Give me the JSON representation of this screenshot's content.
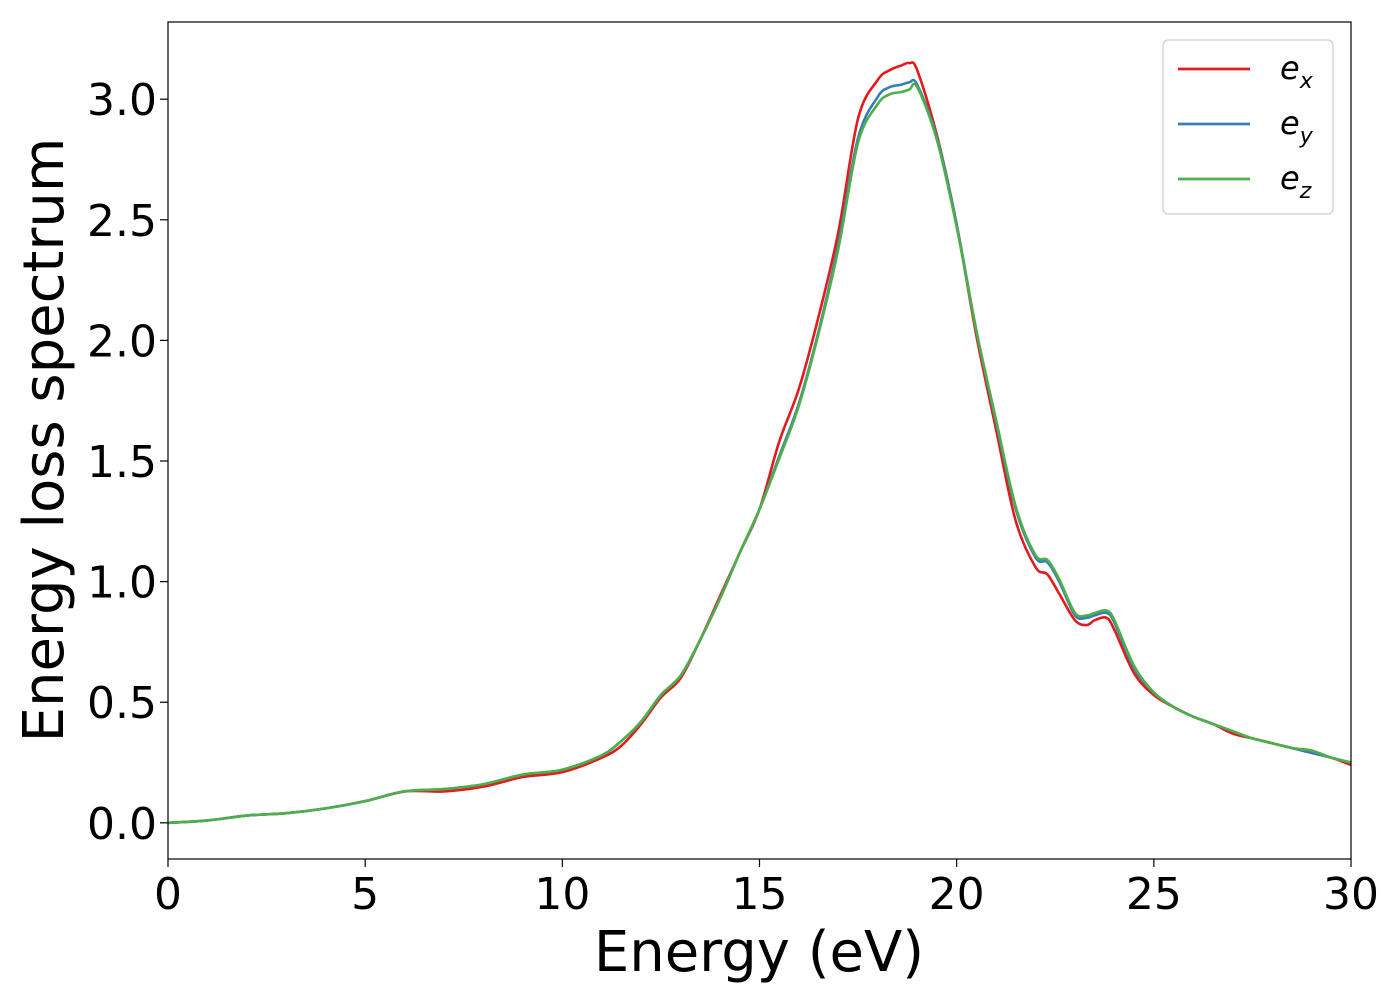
{
  "chart_data": {
    "type": "line",
    "xlabel": "Energy (eV)",
    "ylabel": "Energy loss spectrum",
    "xlim": [
      0,
      30
    ],
    "ylim": [
      -0.15,
      3.32
    ],
    "xticks": [
      0,
      5,
      10,
      15,
      20,
      25,
      30
    ],
    "xtick_labels": [
      "0",
      "5",
      "10",
      "15",
      "20",
      "25",
      "30"
    ],
    "yticks": [
      0.0,
      0.5,
      1.0,
      1.5,
      2.0,
      2.5,
      3.0
    ],
    "ytick_labels": [
      "0.0",
      "0.5",
      "1.0",
      "1.5",
      "2.0",
      "2.5",
      "3.0"
    ],
    "grid": false,
    "legend": {
      "position": "top-right"
    },
    "series": [
      {
        "name": "e",
        "name_sub": "x",
        "color": "#e41a1c",
        "x": [
          0,
          1,
          2,
          3,
          4,
          5,
          6,
          7,
          8,
          9,
          10,
          11,
          11.5,
          12,
          12.5,
          13,
          13.5,
          14,
          14.5,
          15,
          15.5,
          16,
          16.5,
          17,
          17.5,
          18,
          18.3,
          18.6,
          18.8,
          19,
          19.5,
          20,
          20.5,
          21,
          21.5,
          22,
          22.3,
          22.6,
          23,
          23.3,
          23.5,
          23.8,
          24,
          24.5,
          25,
          25.5,
          26,
          26.5,
          27,
          27.5,
          28,
          28.5,
          29,
          29.5,
          30
        ],
        "y": [
          0,
          0.01,
          0.03,
          0.04,
          0.06,
          0.09,
          0.13,
          0.13,
          0.15,
          0.19,
          0.21,
          0.27,
          0.32,
          0.41,
          0.52,
          0.6,
          0.76,
          0.94,
          1.12,
          1.3,
          1.58,
          1.8,
          2.1,
          2.45,
          2.92,
          3.08,
          3.12,
          3.14,
          3.15,
          3.12,
          2.85,
          2.48,
          2.02,
          1.63,
          1.25,
          1.06,
          1.03,
          0.95,
          0.84,
          0.82,
          0.84,
          0.85,
          0.8,
          0.62,
          0.53,
          0.48,
          0.44,
          0.41,
          0.37,
          0.35,
          0.33,
          0.31,
          0.29,
          0.27,
          0.24
        ]
      },
      {
        "name": "e",
        "name_sub": "y",
        "color": "#377eb8",
        "x": [
          0,
          1,
          2,
          3,
          4,
          5,
          6,
          7,
          8,
          9,
          10,
          11,
          11.5,
          12,
          12.5,
          13,
          13.5,
          14,
          14.5,
          15,
          15.5,
          16,
          16.5,
          17,
          17.5,
          18,
          18.3,
          18.6,
          18.8,
          19,
          19.5,
          20,
          20.5,
          21,
          21.5,
          22,
          22.3,
          22.6,
          23,
          23.3,
          23.5,
          23.8,
          24,
          24.5,
          25,
          25.5,
          26,
          26.5,
          27,
          27.5,
          28,
          28.5,
          29,
          29.5,
          30
        ],
        "y": [
          0,
          0.01,
          0.03,
          0.04,
          0.06,
          0.09,
          0.13,
          0.14,
          0.16,
          0.2,
          0.22,
          0.28,
          0.34,
          0.42,
          0.53,
          0.61,
          0.76,
          0.93,
          1.12,
          1.3,
          1.52,
          1.74,
          2.04,
          2.4,
          2.84,
          3.01,
          3.05,
          3.06,
          3.07,
          3.06,
          2.84,
          2.48,
          2.04,
          1.66,
          1.3,
          1.1,
          1.08,
          1.0,
          0.86,
          0.85,
          0.86,
          0.87,
          0.83,
          0.64,
          0.54,
          0.48,
          0.44,
          0.41,
          0.38,
          0.35,
          0.33,
          0.31,
          0.29,
          0.27,
          0.25
        ]
      },
      {
        "name": "e",
        "name_sub": "z",
        "color": "#4daf4a",
        "x": [
          0,
          1,
          2,
          3,
          4,
          5,
          6,
          7,
          8,
          9,
          10,
          11,
          11.5,
          12,
          12.5,
          13,
          13.5,
          14,
          14.5,
          15,
          15.5,
          16,
          16.5,
          17,
          17.5,
          18,
          18.3,
          18.6,
          18.8,
          19,
          19.5,
          20,
          20.5,
          21,
          21.5,
          22,
          22.3,
          22.6,
          23,
          23.3,
          23.5,
          23.8,
          24,
          24.5,
          25,
          25.5,
          26,
          26.5,
          27,
          27.5,
          28,
          28.5,
          29,
          29.5,
          30
        ],
        "y": [
          0,
          0.01,
          0.03,
          0.04,
          0.06,
          0.09,
          0.13,
          0.14,
          0.16,
          0.2,
          0.22,
          0.28,
          0.34,
          0.42,
          0.53,
          0.61,
          0.76,
          0.93,
          1.12,
          1.3,
          1.51,
          1.73,
          2.03,
          2.38,
          2.82,
          2.98,
          3.02,
          3.03,
          3.04,
          3.05,
          2.83,
          2.47,
          2.04,
          1.67,
          1.31,
          1.11,
          1.09,
          1.01,
          0.87,
          0.86,
          0.87,
          0.88,
          0.84,
          0.65,
          0.54,
          0.48,
          0.44,
          0.41,
          0.38,
          0.35,
          0.33,
          0.31,
          0.3,
          0.27,
          0.25
        ]
      }
    ]
  }
}
